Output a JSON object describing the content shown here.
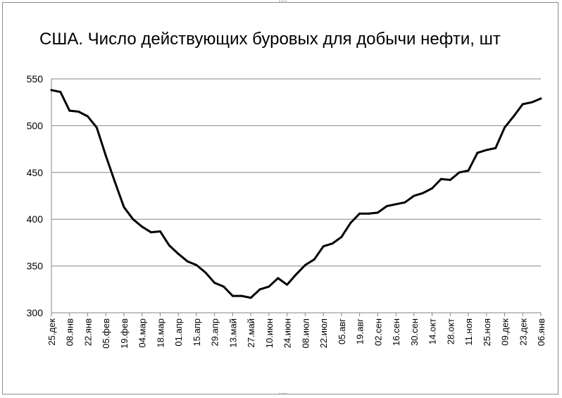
{
  "chart_data": {
    "type": "line",
    "title": "США. Число действующих буровых для добычи нефти, шт",
    "xlabel": "",
    "ylabel": "",
    "ylim": [
      300,
      550
    ],
    "yticks": [
      300,
      350,
      400,
      450,
      500,
      550
    ],
    "grid": "horizontal",
    "legend": "none",
    "line_color": "#000000",
    "x_tick_labels": [
      "25.дек",
      "08.янв",
      "22.янв",
      "05.фев",
      "19.фев",
      "04.мар",
      "18.мар",
      "01.апр",
      "15.апр",
      "29.апр",
      "13.май",
      "27.май",
      "10.июн",
      "24.июн",
      "08.июл",
      "22.июл",
      "05.авг",
      "19.авг",
      "02.сен",
      "16.сен",
      "30.сен",
      "14.окт",
      "28.окт",
      "11.ноя",
      "25.ноя",
      "09.дек",
      "23.дек",
      "06.янв"
    ],
    "series": [
      {
        "values": [
          538,
          536,
          516,
          515,
          510,
          498,
          468,
          440,
          413,
          400,
          392,
          386,
          387,
          372,
          363,
          355,
          351,
          343,
          332,
          328,
          318,
          318,
          316,
          325,
          328,
          337,
          330,
          341,
          351,
          357,
          371,
          374,
          381,
          396,
          406,
          406,
          407,
          414,
          416,
          418,
          425,
          428,
          433,
          443,
          442,
          450,
          452,
          471,
          474,
          476,
          498,
          510,
          523,
          525,
          529
        ]
      }
    ]
  },
  "frame": {
    "handle_glyph": "••••"
  }
}
